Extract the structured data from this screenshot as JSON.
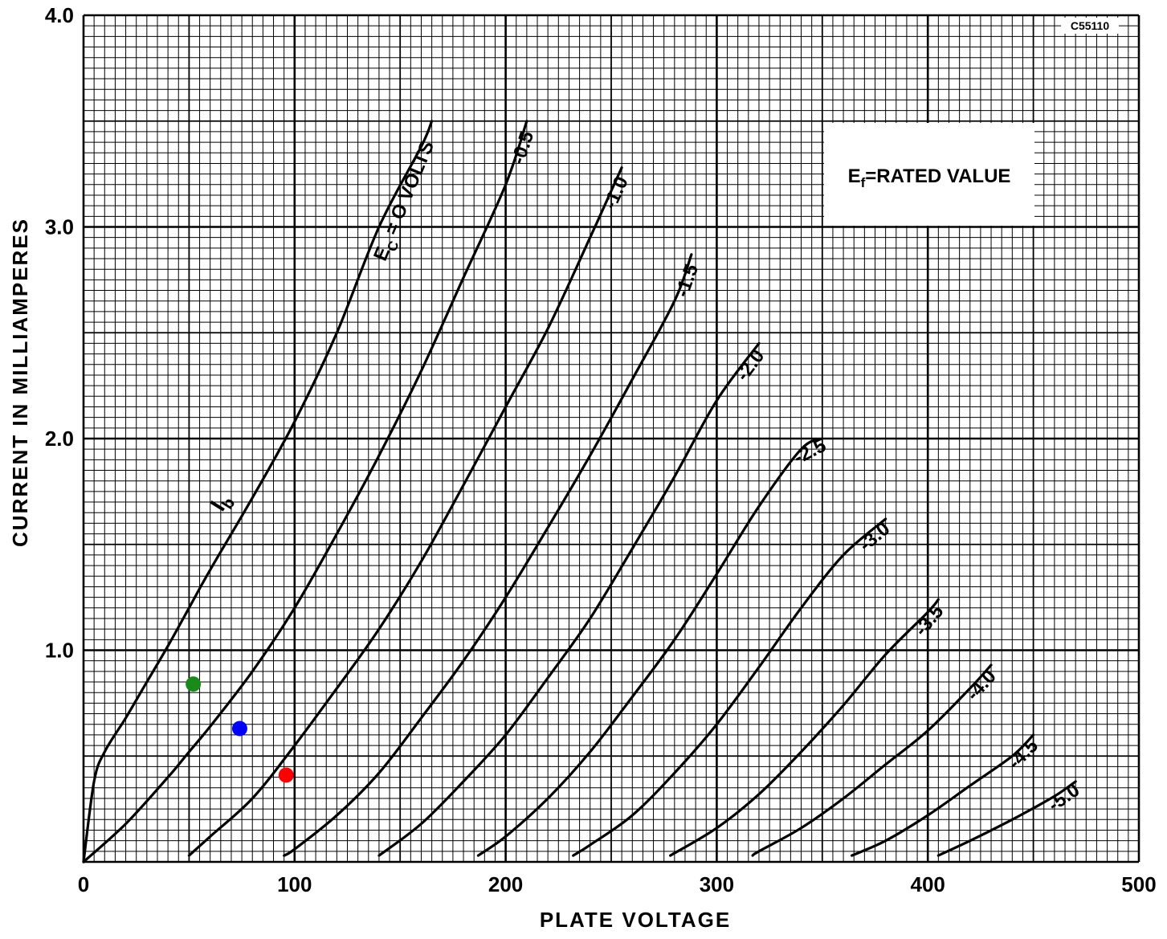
{
  "chart_data": {
    "type": "line",
    "xlabel": "PLATE VOLTAGE",
    "ylabel": "CURRENT IN MILLIAMPERES",
    "xlim": [
      0,
      500
    ],
    "ylim": [
      0,
      4.0
    ],
    "x_ticks": [
      "0",
      "100",
      "200",
      "300",
      "400",
      "500"
    ],
    "y_ticks": [
      "1.0",
      "2.0",
      "3.0",
      "4.0"
    ],
    "grid": true,
    "reference_code": "C55110",
    "annotation": {
      "prefix": "E",
      "sub": "f",
      "suffix": "=RATED VALUE"
    },
    "current_label": {
      "main": "I",
      "sub": "b"
    },
    "series": [
      {
        "label": "E",
        "label_sub": "C",
        "label_rest": "= O VOLTS",
        "x": [
          0,
          5,
          10,
          20,
          30,
          40,
          50,
          60,
          80,
          100,
          120,
          140,
          160,
          165
        ],
        "y": [
          0,
          0.38,
          0.52,
          0.68,
          0.85,
          1.02,
          1.2,
          1.38,
          1.72,
          2.08,
          2.5,
          3.0,
          3.38,
          3.5
        ]
      },
      {
        "label": "-0.5",
        "x": [
          0,
          20,
          40,
          50,
          60,
          80,
          100,
          120,
          140,
          160,
          180,
          200,
          210
        ],
        "y": [
          0,
          0.18,
          0.4,
          0.52,
          0.64,
          0.9,
          1.2,
          1.55,
          1.92,
          2.32,
          2.76,
          3.2,
          3.5
        ]
      },
      {
        "label": "-1.0",
        "x": [
          50,
          60,
          80,
          100,
          120,
          140,
          160,
          180,
          200,
          220,
          240,
          255
        ],
        "y": [
          0.03,
          0.12,
          0.3,
          0.55,
          0.82,
          1.1,
          1.42,
          1.78,
          2.15,
          2.52,
          2.95,
          3.28
        ]
      },
      {
        "label": "-1.5",
        "x": [
          95,
          100,
          120,
          140,
          160,
          180,
          200,
          220,
          240,
          260,
          280,
          288
        ],
        "y": [
          0.03,
          0.06,
          0.22,
          0.42,
          0.68,
          0.95,
          1.25,
          1.58,
          1.92,
          2.28,
          2.65,
          2.87
        ]
      },
      {
        "label": "-2.0",
        "x": [
          140,
          160,
          180,
          200,
          220,
          240,
          260,
          280,
          300,
          320
        ],
        "y": [
          0.03,
          0.18,
          0.38,
          0.6,
          0.87,
          1.15,
          1.48,
          1.82,
          2.18,
          2.45
        ]
      },
      {
        "label": "-2.5",
        "x": [
          187,
          200,
          220,
          240,
          260,
          280,
          300,
          320,
          340,
          350
        ],
        "y": [
          0.03,
          0.12,
          0.3,
          0.52,
          0.78,
          1.05,
          1.36,
          1.68,
          1.95,
          2.0
        ]
      },
      {
        "label": "-3.0",
        "x": [
          232,
          240,
          260,
          280,
          300,
          320,
          340,
          360,
          380
        ],
        "y": [
          0.03,
          0.08,
          0.22,
          0.42,
          0.65,
          0.92,
          1.2,
          1.45,
          1.62
        ]
      },
      {
        "label": "-3.5",
        "x": [
          278,
          300,
          320,
          340,
          360,
          380,
          400,
          405
        ],
        "y": [
          0.03,
          0.16,
          0.32,
          0.52,
          0.74,
          0.98,
          1.18,
          1.24
        ]
      },
      {
        "label": "-4.0",
        "x": [
          317,
          320,
          340,
          360,
          380,
          400,
          420,
          430
        ],
        "y": [
          0.03,
          0.05,
          0.16,
          0.3,
          0.46,
          0.62,
          0.82,
          0.93
        ]
      },
      {
        "label": "-4.5",
        "x": [
          364,
          380,
          400,
          420,
          440,
          450
        ],
        "y": [
          0.03,
          0.1,
          0.22,
          0.36,
          0.5,
          0.6
        ]
      },
      {
        "label": "-5.0",
        "x": [
          405,
          420,
          440,
          460,
          470
        ],
        "y": [
          0.03,
          0.1,
          0.2,
          0.31,
          0.38
        ]
      }
    ],
    "markers": [
      {
        "color": "#1a8a1a",
        "x": 52,
        "y": 0.84
      },
      {
        "color": "#0000ff",
        "x": 74,
        "y": 0.63
      },
      {
        "color": "#ff0000",
        "x": 96,
        "y": 0.41
      }
    ]
  }
}
